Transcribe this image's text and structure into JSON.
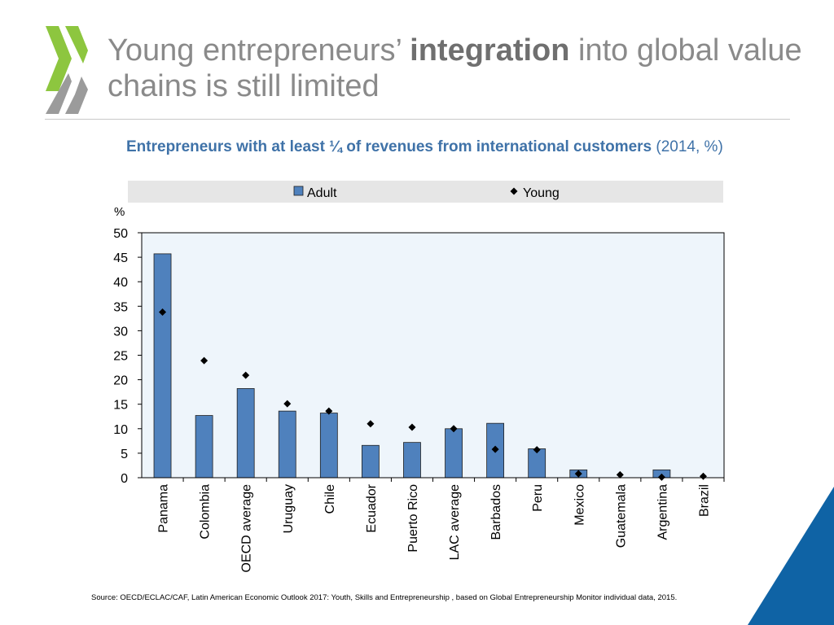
{
  "slide": {
    "title_part1": "Young entrepreneurs’ ",
    "title_bold": "integration",
    "title_part2": " into global value chains is still limited",
    "subtitle_bold": "Entrepreneurs with at least ¼ of revenues from international customers",
    "subtitle_normal": " (2014, %)",
    "source": "Source: OECD/ECLAC/CAF, Latin American Economic Outlook 2017: Youth, Skills and Entrepreneurship , based on Global Entrepreneurship Monitor individual data, 2015."
  },
  "colors": {
    "bar": "#4f81bd",
    "bar_stroke": "#1f1f1f",
    "marker": "#000000",
    "plot_bg": "#eef5fb",
    "legend_bg": "#e6e6e6",
    "logo_green": "#8dc63f",
    "logo_gray": "#9b9b9b",
    "corner_blue": "#0f63a5"
  },
  "chart_data": {
    "type": "bar",
    "y_unit_label": "%",
    "ylim": [
      0,
      50
    ],
    "yticks": [
      "0",
      "5",
      "10",
      "15",
      "20",
      "25",
      "30",
      "35",
      "40",
      "45",
      "50"
    ],
    "legend_position": "top",
    "grid": false,
    "categories": [
      "Panama",
      "Colombia",
      "OECD average",
      "Uruguay",
      "Chile",
      "Ecuador",
      "Puerto Rico",
      "LAC average",
      "Barbados",
      "Peru",
      "Mexico",
      "Guatemala",
      "Argentina",
      "Brazil"
    ],
    "series": [
      {
        "name": "Adult",
        "kind": "bar",
        "values": [
          45.7,
          12.7,
          18.2,
          13.6,
          13.2,
          6.6,
          7.2,
          10.0,
          11.1,
          5.9,
          1.6,
          0,
          1.6,
          0
        ]
      },
      {
        "name": "Young",
        "kind": "marker",
        "values": [
          33.8,
          23.9,
          20.9,
          15.1,
          13.6,
          11.0,
          10.3,
          10.0,
          5.8,
          5.7,
          0.8,
          0.6,
          0.1,
          0.3
        ]
      }
    ]
  }
}
